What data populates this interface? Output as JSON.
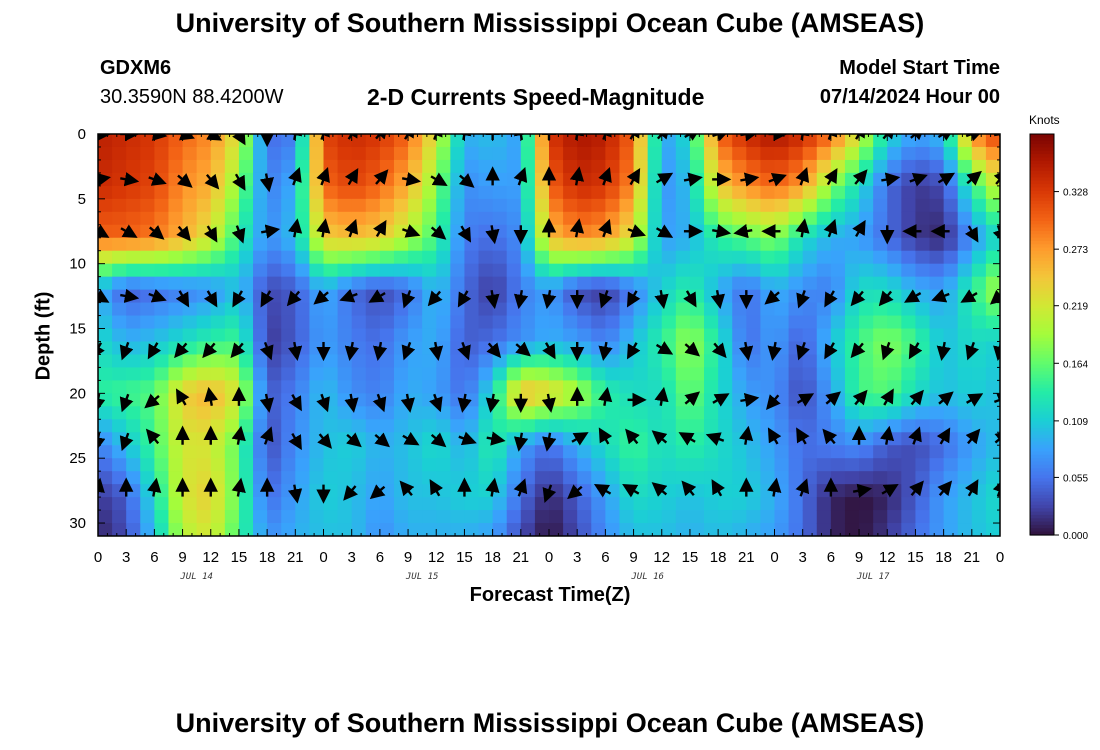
{
  "header": {
    "title": "University of Southern Mississippi Ocean Cube (AMSEAS)",
    "station": "GDXM6",
    "coords": "30.3590N  88.4200W",
    "plot_title": "2-D Currents Speed-Magnitude",
    "model_start_label": "Model Start Time",
    "model_start_value": "07/14/2024 Hour 00"
  },
  "footer": {
    "title": "University of Southern Mississippi Ocean Cube (AMSEAS)"
  },
  "chart_data": {
    "type": "heatmap",
    "title": "2-D Currents Speed-Magnitude",
    "xlabel": "Forecast Time(Z)",
    "ylabel": "Depth (ft)",
    "x_range_hours": [
      0,
      96
    ],
    "x_ticks": [
      "0",
      "3",
      "6",
      "9",
      "12",
      "15",
      "18",
      "21",
      "0",
      "3",
      "6",
      "9",
      "12",
      "15",
      "18",
      "21",
      "0",
      "3",
      "6",
      "9",
      "12",
      "15",
      "18",
      "21",
      "0",
      "3",
      "6",
      "9",
      "12",
      "15",
      "18",
      "21",
      "0"
    ],
    "date_labels": [
      {
        "label": "JUL 14",
        "hour": 10.5
      },
      {
        "label": "JUL 15",
        "hour": 34.5
      },
      {
        "label": "JUL 16",
        "hour": 58.5
      },
      {
        "label": "JUL 17",
        "hour": 82.5
      }
    ],
    "y_range_ft": [
      0,
      31
    ],
    "y_ticks": [
      0,
      5,
      10,
      15,
      20,
      25,
      30
    ],
    "colorbar": {
      "units": "Knots",
      "range": [
        0,
        0.383
      ],
      "ticks": [
        "0.000",
        "0.055",
        "0.109",
        "0.164",
        "0.219",
        "0.273",
        "0.328"
      ],
      "colors": [
        "#30123b",
        "#4145ab",
        "#4675ed",
        "#39a2fc",
        "#1bcfd4",
        "#24eca6",
        "#61fc6c",
        "#a4fc3b",
        "#d1e834",
        "#f3c63a",
        "#fe9b2d",
        "#f36315",
        "#d93806",
        "#b11901",
        "#7a0402"
      ]
    },
    "depths_ft": [
      0,
      4,
      8,
      12,
      16,
      20,
      24,
      28,
      31
    ],
    "speed_knots": [
      [
        0.35,
        0.34,
        0.33,
        0.3,
        0.28,
        0.22,
        0.05,
        0.06,
        0.32,
        0.34,
        0.33,
        0.3,
        0.22,
        0.09,
        0.1,
        0.08,
        0.33,
        0.36,
        0.35,
        0.3,
        0.08,
        0.12,
        0.3,
        0.34,
        0.36,
        0.34,
        0.3,
        0.22,
        0.12,
        0.08,
        0.1,
        0.28,
        0.33
      ],
      [
        0.34,
        0.33,
        0.32,
        0.28,
        0.26,
        0.18,
        0.06,
        0.09,
        0.3,
        0.32,
        0.3,
        0.26,
        0.18,
        0.07,
        0.08,
        0.08,
        0.3,
        0.34,
        0.33,
        0.28,
        0.07,
        0.1,
        0.24,
        0.28,
        0.3,
        0.27,
        0.18,
        0.12,
        0.05,
        0.02,
        0.03,
        0.14,
        0.22
      ],
      [
        0.3,
        0.3,
        0.29,
        0.26,
        0.22,
        0.14,
        0.07,
        0.1,
        0.24,
        0.25,
        0.24,
        0.2,
        0.15,
        0.06,
        0.05,
        0.07,
        0.25,
        0.28,
        0.27,
        0.22,
        0.08,
        0.09,
        0.14,
        0.16,
        0.18,
        0.12,
        0.09,
        0.08,
        0.05,
        0.02,
        0.01,
        0.07,
        0.12
      ],
      [
        0.09,
        0.04,
        0.05,
        0.06,
        0.07,
        0.1,
        0.03,
        0.04,
        0.09,
        0.05,
        0.03,
        0.05,
        0.1,
        0.05,
        0.02,
        0.06,
        0.08,
        0.03,
        0.02,
        0.06,
        0.11,
        0.14,
        0.09,
        0.05,
        0.09,
        0.07,
        0.06,
        0.12,
        0.12,
        0.09,
        0.08,
        0.14,
        0.2
      ],
      [
        0.12,
        0.09,
        0.1,
        0.12,
        0.14,
        0.15,
        0.02,
        0.04,
        0.08,
        0.06,
        0.05,
        0.08,
        0.09,
        0.04,
        0.05,
        0.07,
        0.09,
        0.08,
        0.06,
        0.1,
        0.14,
        0.19,
        0.13,
        0.05,
        0.08,
        0.04,
        0.1,
        0.15,
        0.18,
        0.15,
        0.1,
        0.12,
        0.11
      ],
      [
        0.14,
        0.15,
        0.16,
        0.24,
        0.26,
        0.22,
        0.04,
        0.06,
        0.1,
        0.07,
        0.06,
        0.09,
        0.08,
        0.05,
        0.12,
        0.26,
        0.24,
        0.2,
        0.14,
        0.12,
        0.12,
        0.17,
        0.12,
        0.08,
        0.07,
        0.03,
        0.08,
        0.15,
        0.16,
        0.12,
        0.1,
        0.11,
        0.1
      ],
      [
        0.06,
        0.1,
        0.15,
        0.22,
        0.22,
        0.16,
        0.03,
        0.07,
        0.1,
        0.11,
        0.09,
        0.1,
        0.12,
        0.09,
        0.14,
        0.08,
        0.05,
        0.09,
        0.12,
        0.15,
        0.12,
        0.14,
        0.12,
        0.1,
        0.08,
        0.05,
        0.06,
        0.07,
        0.04,
        0.03,
        0.05,
        0.08,
        0.1
      ],
      [
        0.02,
        0.04,
        0.12,
        0.22,
        0.24,
        0.16,
        0.05,
        0.08,
        0.11,
        0.1,
        0.08,
        0.1,
        0.1,
        0.11,
        0.11,
        0.05,
        0.01,
        0.04,
        0.08,
        0.12,
        0.11,
        0.1,
        0.11,
        0.11,
        0.09,
        0.05,
        0.01,
        0.0,
        0.01,
        0.04,
        0.08,
        0.1,
        0.12
      ],
      [
        0.01,
        0.03,
        0.1,
        0.2,
        0.22,
        0.15,
        0.07,
        0.09,
        0.1,
        0.1,
        0.07,
        0.09,
        0.09,
        0.09,
        0.08,
        0.03,
        0.0,
        0.03,
        0.07,
        0.1,
        0.1,
        0.09,
        0.1,
        0.09,
        0.08,
        0.05,
        0.01,
        0.0,
        0.02,
        0.05,
        0.08,
        0.1,
        0.11
      ]
    ],
    "vector_depths_ft": [
      0,
      3.5,
      7.5,
      12.5,
      16.5,
      20.5,
      23.5,
      27.5
    ],
    "vector_direction_deg": [
      [
        90,
        90,
        100,
        110,
        120,
        150,
        180,
        10,
        20,
        30,
        40,
        30,
        20,
        10,
        0,
        350,
        0,
        10,
        20,
        30,
        40,
        60,
        70,
        80,
        90,
        10,
        20,
        30,
        40,
        50,
        60,
        70,
        80
      ],
      [
        80,
        100,
        110,
        130,
        140,
        150,
        170,
        20,
        20,
        30,
        40,
        100,
        120,
        130,
        0,
        20,
        0,
        10,
        20,
        30,
        60,
        80,
        90,
        80,
        70,
        20,
        30,
        40,
        80,
        70,
        60,
        50,
        40
      ],
      [
        120,
        120,
        130,
        140,
        150,
        160,
        80,
        10,
        10,
        20,
        30,
        110,
        130,
        150,
        170,
        180,
        0,
        10,
        20,
        110,
        120,
        90,
        100,
        260,
        270,
        10,
        20,
        30,
        180,
        270,
        270,
        150,
        160
      ],
      [
        120,
        100,
        110,
        150,
        150,
        210,
        210,
        220,
        230,
        250,
        240,
        200,
        220,
        210,
        170,
        190,
        190,
        180,
        200,
        210,
        170,
        150,
        170,
        180,
        230,
        200,
        210,
        220,
        220,
        240,
        250,
        240,
        230
      ],
      [
        210,
        200,
        210,
        220,
        220,
        220,
        160,
        170,
        180,
        190,
        190,
        200,
        170,
        160,
        140,
        130,
        150,
        180,
        190,
        210,
        120,
        130,
        140,
        170,
        190,
        200,
        210,
        220,
        200,
        210,
        190,
        200,
        190
      ],
      [
        190,
        200,
        230,
        330,
        350,
        360,
        170,
        150,
        160,
        170,
        160,
        170,
        160,
        190,
        190,
        180,
        170,
        0,
        10,
        90,
        10,
        50,
        60,
        80,
        220,
        60,
        50,
        40,
        30,
        40,
        50,
        60,
        70
      ],
      [
        190,
        200,
        320,
        0,
        0,
        10,
        20,
        150,
        140,
        130,
        130,
        120,
        130,
        110,
        100,
        190,
        190,
        60,
        330,
        320,
        310,
        300,
        290,
        10,
        330,
        330,
        320,
        0,
        10,
        20,
        30,
        40,
        50
      ],
      [
        10,
        0,
        10,
        0,
        0,
        10,
        0,
        170,
        180,
        220,
        230,
        320,
        330,
        0,
        10,
        20,
        200,
        230,
        300,
        300,
        310,
        320,
        330,
        0,
        10,
        20,
        0,
        80,
        60,
        40,
        40,
        30,
        20
      ]
    ]
  }
}
